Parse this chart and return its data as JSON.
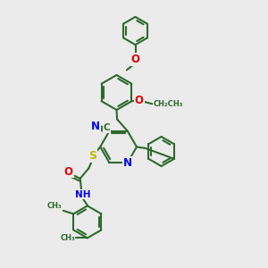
{
  "bg_color": "#ebebeb",
  "bond_color": "#2d6b2d",
  "bond_width": 1.5,
  "atom_colors": {
    "N": "#0000ee",
    "O": "#dd0000",
    "S": "#bbbb00",
    "C": "#2d6b2d"
  },
  "font_size": 7.5,
  "fig_width": 3.0,
  "fig_height": 3.0,
  "xlim": [
    0,
    10
  ],
  "ylim": [
    0,
    10
  ]
}
